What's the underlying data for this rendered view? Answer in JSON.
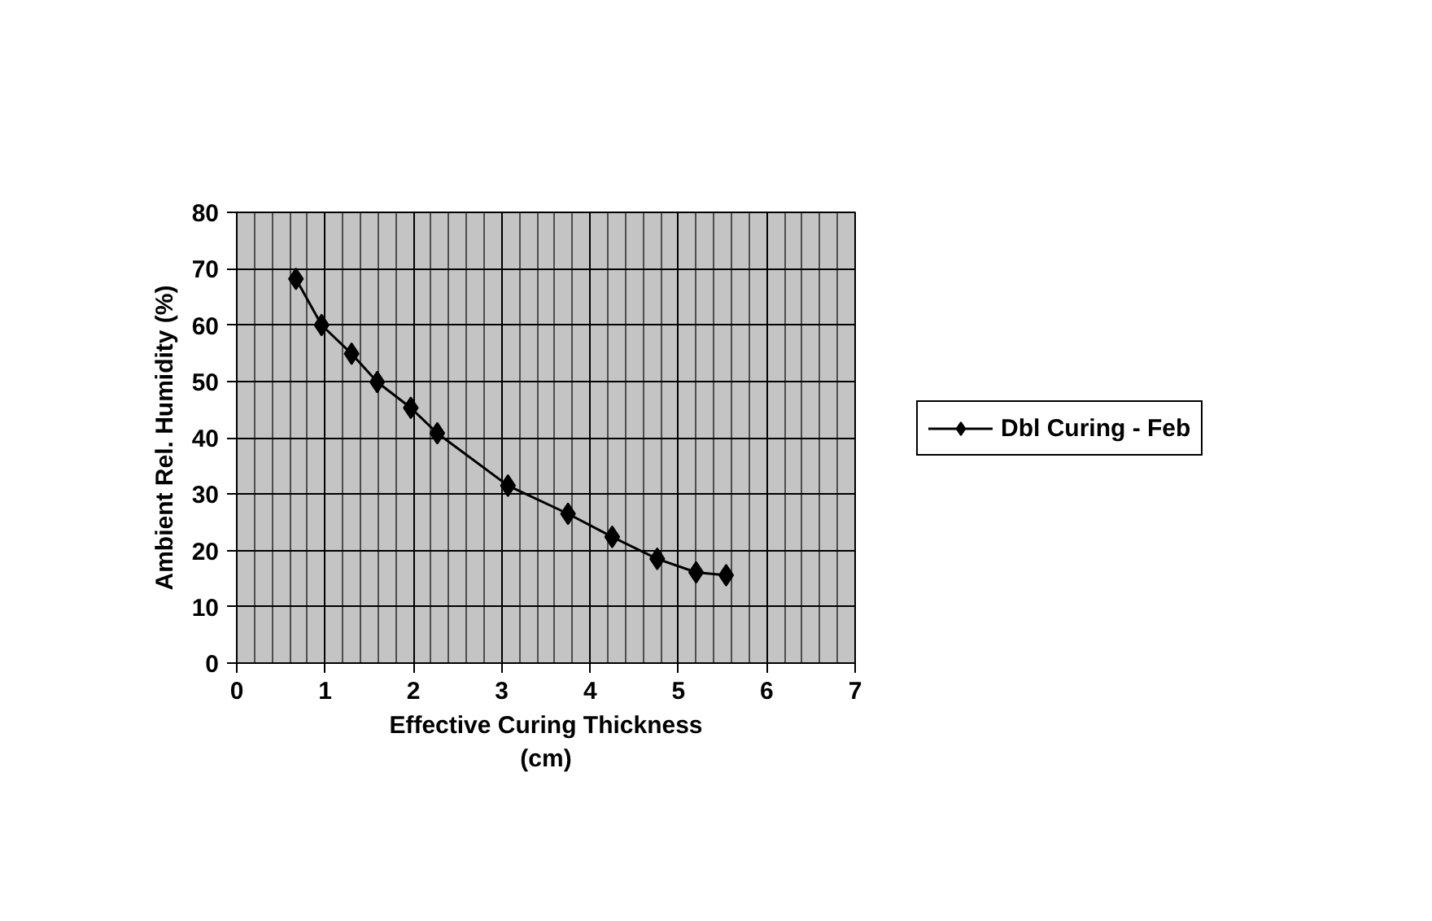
{
  "chart_data": {
    "type": "line",
    "xlabel": "Effective Curing Thickness\n(cm)",
    "ylabel": "Ambient Rel. Humidity (%)",
    "x": [
      0.67,
      0.96,
      1.3,
      1.59,
      1.97,
      2.27,
      3.07,
      3.75,
      4.25,
      4.76,
      5.2,
      5.54
    ],
    "series": [
      {
        "name": "Dbl Curing - Feb",
        "color": "#000000",
        "values": [
          68.2,
          60,
          54.9,
          49.9,
          45.3,
          40.8,
          31.5,
          26.5,
          22.4,
          18.5,
          16.1,
          15.6
        ]
      }
    ],
    "xlim": [
      0,
      7
    ],
    "xticks": [
      0,
      1,
      2,
      3,
      4,
      5,
      6,
      7
    ],
    "ylim": [
      0,
      80
    ],
    "yticks": [
      0,
      10,
      20,
      30,
      40,
      50,
      60,
      70,
      80
    ],
    "grid": true,
    "legend": "right",
    "marker": "diamond",
    "line_style": "solid"
  }
}
